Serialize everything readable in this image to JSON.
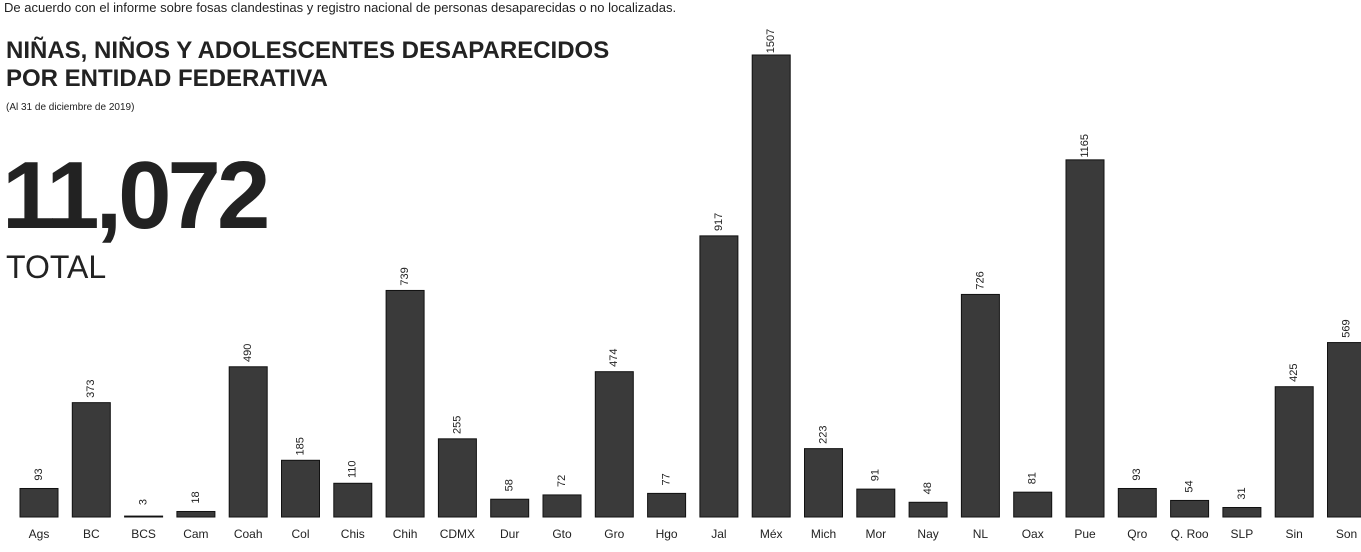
{
  "chart_data": {
    "type": "bar",
    "note": "De acuerdo con el informe sobre fosas clandestinas y registro nacional de personas desaparecidas o no localizadas.",
    "title": [
      "NIÑAS, NIÑOS Y ADOLESCENTES DESAPARECIDOS",
      "POR ENTIDAD FEDERATIVA"
    ],
    "subtitle": "(Al 31 de diciembre de 2019)",
    "total": "11,072",
    "total_label": "TOTAL",
    "categories": [
      "Ags",
      "BC",
      "BCS",
      "Cam",
      "Coah",
      "Col",
      "Chis",
      "Chih",
      "CDMX",
      "Dur",
      "Gto",
      "Gro",
      "Hgo",
      "Jal",
      "Méx",
      "Mich",
      "Mor",
      "Nay",
      "NL",
      "Oax",
      "Pue",
      "Qro",
      "Q. Roo",
      "SLP",
      "Sin",
      "Son"
    ],
    "values": [
      93,
      373,
      3,
      18,
      490,
      185,
      110,
      739,
      255,
      58,
      72,
      474,
      77,
      917,
      1507,
      223,
      91,
      48,
      726,
      81,
      1165,
      93,
      54,
      31,
      425,
      569
    ],
    "color": "#3a3a3a"
  }
}
